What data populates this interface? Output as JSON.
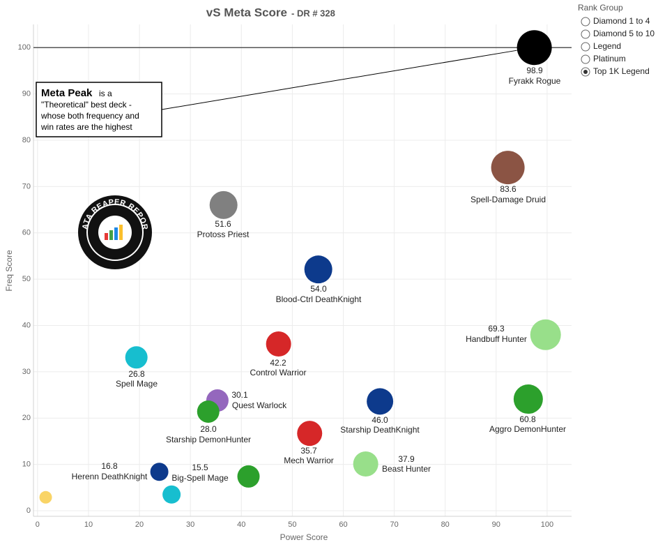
{
  "chart_data": {
    "type": "scatter",
    "title": "vS Meta Score",
    "subtitle": "- DR # 328",
    "x_label": "Power Score",
    "y_label": "Freq Score",
    "labels": [
      "Fyrakk Rogue",
      "Spell-Damage Druid",
      "Protoss Priest",
      "Blood-Ctrl DeathKnight",
      "Handbuff Hunter",
      "Control Warrior",
      "Spell Mage",
      "Quest Warlock",
      "Starship DemonHunter",
      "Starship DeathKnight",
      "Aggro DemonHunter",
      "Mech Warrior",
      "Beast Hunter",
      "Herenn DeathKnight",
      "Big-Spell Mage",
      null,
      null
    ],
    "scores": [
      98.9,
      83.6,
      51.6,
      54.0,
      69.3,
      42.2,
      26.8,
      30.1,
      28.0,
      46.0,
      60.8,
      35.7,
      37.9,
      16.8,
      15.5,
      null,
      null
    ],
    "score_labels": [
      "98.9",
      "83.6",
      "51.6",
      "54.0",
      "69.3",
      "42.2",
      "26.8",
      "30.1",
      "28.0",
      "46.0",
      "60.8",
      "35.7",
      "37.9",
      "16.8",
      "15.5",
      null,
      null
    ],
    "x": [
      97.5,
      92.3,
      36.5,
      55.1,
      99.7,
      47.3,
      19.4,
      35.3,
      33.5,
      67.2,
      96.3,
      53.4,
      64.4,
      23.9,
      26.3,
      41.4,
      1.6
    ],
    "values": [
      100,
      74.1,
      66.0,
      52.1,
      38.0,
      36.0,
      33.1,
      23.8,
      21.4,
      23.6,
      24.1,
      16.7,
      10.1,
      8.4,
      3.5,
      7.4,
      2.9
    ],
    "sizes": [
      25,
      24,
      20,
      20,
      22,
      18,
      16,
      16,
      16,
      19,
      21,
      18,
      18,
      13,
      13,
      16,
      9
    ],
    "colors": [
      "#000000",
      "#8b5444",
      "#808080",
      "#0d3a8c",
      "#98df8a",
      "#d62728",
      "#17becf",
      "#9467bd",
      "#2ca02c",
      "#0d3a8c",
      "#2ca02c",
      "#d62728",
      "#98df8a",
      "#0d3a8c",
      "#17becf",
      "#2ca02c",
      "#f9d466"
    ],
    "xlim": [
      -0.8,
      104.8
    ],
    "ylim": [
      -1.2,
      105
    ],
    "xticks": [
      0,
      10,
      20,
      30,
      40,
      50,
      60,
      70,
      80,
      90,
      100
    ],
    "yticks": [
      0,
      10,
      20,
      30,
      40,
      50,
      60,
      70,
      80,
      90,
      100
    ],
    "reference_line": 100,
    "grid": true,
    "annotation": {
      "title": "Meta Peak",
      "lines": [
        "is a",
        "\"Theoretical\" best deck -",
        "whose both frequency and",
        "win rates are the highest"
      ]
    },
    "logo_text": "DATA REAPER REPORT",
    "filter": {
      "title": "Rank Group",
      "options": [
        "Diamond 1 to 4",
        "Diamond 5 to 10",
        "Legend",
        "Platinum",
        "Top 1K Legend"
      ],
      "selected": 4
    }
  }
}
